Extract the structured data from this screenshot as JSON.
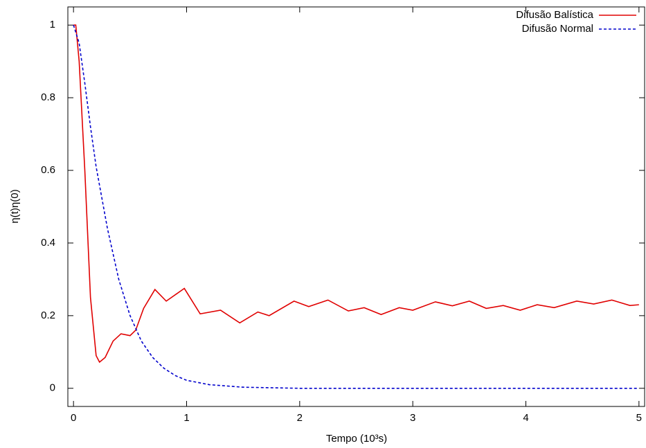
{
  "chart_data": {
    "type": "line",
    "xlabel": "Tempo (10³s)",
    "ylabel": "η(t)η(0)",
    "xlim": [
      -0.05,
      5.05
    ],
    "ylim": [
      -0.05,
      1.05
    ],
    "xticks": [
      0,
      1,
      2,
      3,
      4,
      5
    ],
    "yticks": [
      0,
      0.2,
      0.4,
      0.6,
      0.8,
      1
    ],
    "legend": "top-right",
    "series": [
      {
        "name": "Difusão Balística",
        "color": "#e00000",
        "dash": false,
        "x": [
          0,
          0.02,
          0.05,
          0.1,
          0.15,
          0.2,
          0.23,
          0.28,
          0.35,
          0.42,
          0.5,
          0.55,
          0.62,
          0.72,
          0.82,
          0.98,
          1.12,
          1.3,
          1.47,
          1.63,
          1.73,
          1.95,
          2.08,
          2.25,
          2.43,
          2.57,
          2.72,
          2.88,
          3.0,
          3.2,
          3.35,
          3.5,
          3.65,
          3.8,
          3.95,
          4.1,
          4.25,
          4.45,
          4.6,
          4.76,
          4.92,
          5.0
        ],
        "values": [
          1,
          1,
          0.9,
          0.6,
          0.25,
          0.09,
          0.072,
          0.085,
          0.13,
          0.15,
          0.145,
          0.16,
          0.22,
          0.272,
          0.24,
          0.275,
          0.205,
          0.215,
          0.18,
          0.21,
          0.2,
          0.24,
          0.225,
          0.243,
          0.213,
          0.222,
          0.203,
          0.222,
          0.215,
          0.238,
          0.227,
          0.24,
          0.22,
          0.228,
          0.215,
          0.23,
          0.222,
          0.24,
          0.232,
          0.243,
          0.228,
          0.23
        ]
      },
      {
        "name": "Difusão Normal",
        "color": "#0000cc",
        "dash": true,
        "x": [
          0,
          0.05,
          0.1,
          0.15,
          0.2,
          0.3,
          0.4,
          0.5,
          0.6,
          0.7,
          0.8,
          0.9,
          1.0,
          1.2,
          1.5,
          2,
          3,
          4,
          5
        ],
        "values": [
          1,
          0.95,
          0.84,
          0.72,
          0.61,
          0.44,
          0.3,
          0.2,
          0.13,
          0.085,
          0.055,
          0.035,
          0.022,
          0.01,
          0.003,
          0,
          0,
          0,
          0
        ]
      }
    ]
  }
}
